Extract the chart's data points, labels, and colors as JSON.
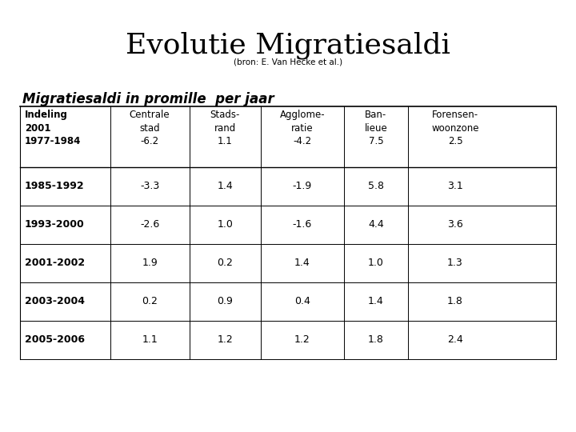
{
  "title": "Evolutie Migratiesaldi",
  "subtitle": "(bron: E. Van Hecke et al.)",
  "table_subtitle": "Migratiesaldi in promille  per jaar",
  "col_headers": [
    "Indeling\n2001",
    "Centrale\nstad",
    "Stads-\nrand",
    "Agglome-\nratie",
    "Ban-\nlieue",
    "Forensen-\nwoonzone"
  ],
  "first_row": [
    "1977-1984",
    "-6.2",
    "1.1",
    "-4.2",
    "7.5",
    "2.5"
  ],
  "rows": [
    [
      "1985-1992",
      "-3.3",
      "1.4",
      "-1.9",
      "5.8",
      "3.1"
    ],
    [
      "1993-2000",
      "-2.6",
      "1.0",
      "-1.6",
      "4.4",
      "3.6"
    ],
    [
      "2001-2002",
      "1.9",
      "0.2",
      "1.4",
      "1.0",
      "1.3"
    ],
    [
      "2003-2004",
      "0.2",
      "0.9",
      "0.4",
      "1.4",
      "1.8"
    ],
    [
      "2005-2006",
      "1.1",
      "1.2",
      "1.2",
      "1.8",
      "2.4"
    ]
  ],
  "bg_color": "#ffffff",
  "title_fontsize": 26,
  "subtitle_fontsize": 7.5,
  "table_subtitle_fontsize": 12,
  "header_fontsize": 8.5,
  "cell_fontsize": 9
}
